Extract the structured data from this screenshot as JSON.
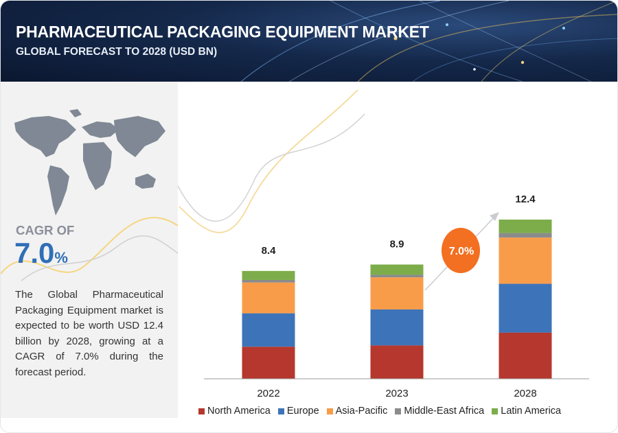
{
  "header": {
    "title": "PHARMACEUTICAL PACKAGING EQUIPMENT MARKET",
    "subtitle": "GLOBAL FORECAST TO 2028 (USD BN)"
  },
  "sidebar": {
    "cagr_label": "CAGR OF",
    "cagr_number": "7.0",
    "cagr_pct": "%",
    "summary": "The Global Pharmaceutical Packaging Equipment market is expected to be worth USD 12.4 billion by 2028, growing at a CAGR of 7.0% during the forecast period."
  },
  "colors": {
    "North America": "#b5372e",
    "Europe": "#3d74b9",
    "Asia-Pacific": "#f89c4a",
    "Middle-East Africa": "#8b8b8b",
    "Latin America": "#7cad4a",
    "cagr_badge": "#f36f21"
  },
  "chart_data": {
    "type": "bar",
    "stacked": true,
    "categories": [
      "2022",
      "2023",
      "2028"
    ],
    "totals": [
      8.4,
      8.9,
      12.4
    ],
    "total_labels": [
      "8.4",
      "8.9",
      "12.4"
    ],
    "series": [
      {
        "name": "North America",
        "values": [
          2.5,
          2.6,
          3.6
        ]
      },
      {
        "name": "Europe",
        "values": [
          2.6,
          2.8,
          3.8
        ]
      },
      {
        "name": "Asia-Pacific",
        "values": [
          2.4,
          2.5,
          3.6
        ]
      },
      {
        "name": "Middle-East Africa",
        "values": [
          0.2,
          0.2,
          0.35
        ]
      },
      {
        "name": "Latin America",
        "values": [
          0.7,
          0.8,
          1.05
        ]
      }
    ],
    "annotation": "7.0%",
    "ylim": [
      0,
      12.4
    ],
    "grid": false,
    "legend_position": "bottom"
  }
}
